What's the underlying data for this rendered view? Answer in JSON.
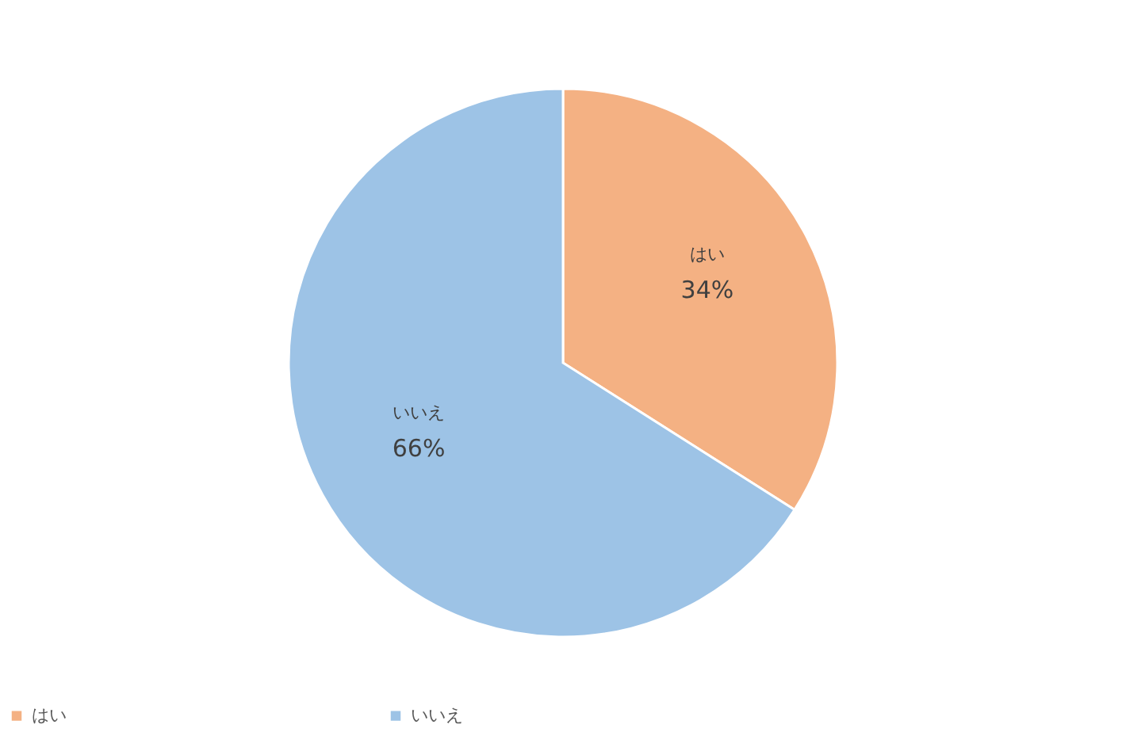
{
  "chart_data": {
    "type": "pie",
    "categories": [
      "はい",
      "いいえ"
    ],
    "values": [
      34,
      66
    ],
    "colors": [
      "#f4b183",
      "#9dc3e6"
    ],
    "value_labels": [
      "34%",
      "66%"
    ],
    "legend": "bottom"
  }
}
